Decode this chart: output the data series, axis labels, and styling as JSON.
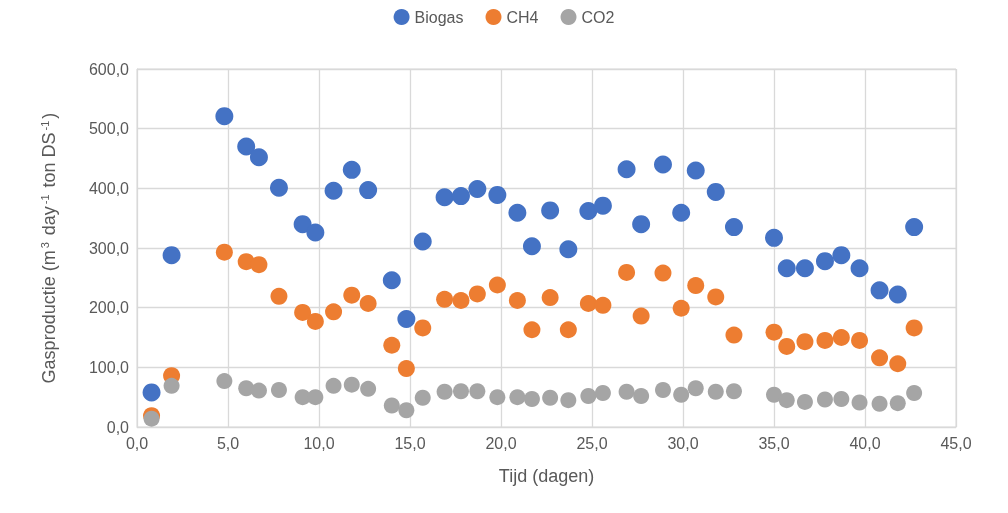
{
  "chart_data": {
    "type": "scatter",
    "xlabel": "Tijd (dagen)",
    "ylabel": "Gasproductie (m$^{3}$ day$^{-1}$ ton DS$^{-1}$)",
    "x": [
      0.8,
      1.9,
      4.8,
      6.0,
      6.7,
      7.8,
      9.1,
      9.8,
      10.8,
      11.8,
      12.7,
      14.0,
      14.8,
      15.7,
      16.9,
      17.8,
      18.7,
      19.8,
      20.9,
      21.7,
      22.7,
      23.7,
      24.8,
      25.6,
      26.9,
      27.7,
      28.9,
      29.9,
      30.7,
      31.8,
      32.8,
      35.0,
      35.7,
      36.7,
      37.8,
      38.7,
      39.7,
      40.8,
      41.8,
      42.7
    ],
    "series": [
      {
        "name": "Biogas",
        "color": "#4472c4",
        "values": [
          58,
          288,
          521,
          470,
          452,
          401,
          340,
          326,
          396,
          431,
          397,
          246,
          181,
          311,
          385,
          387,
          399,
          389,
          359,
          303,
          363,
          298,
          362,
          371,
          432,
          340,
          440,
          359,
          430,
          394,
          335,
          317,
          266,
          266,
          278,
          288,
          266,
          229,
          222,
          335
        ]
      },
      {
        "name": "CH4",
        "color": "#ed7d31",
        "values": [
          19,
          86,
          293,
          277,
          272,
          219,
          192,
          177,
          193,
          221,
          207,
          137,
          98,
          166,
          214,
          212,
          223,
          238,
          212,
          163,
          217,
          163,
          207,
          204,
          259,
          186,
          258,
          199,
          237,
          218,
          154,
          159,
          135,
          143,
          145,
          150,
          145,
          116,
          106,
          166
        ]
      },
      {
        "name": "CO2",
        "color": "#a5a5a5",
        "values": [
          14,
          69,
          77,
          65,
          61,
          62,
          50,
          50,
          69,
          71,
          64,
          36,
          28,
          49,
          59,
          60,
          60,
          50,
          50,
          47,
          49,
          45,
          52,
          57,
          59,
          52,
          62,
          54,
          65,
          59,
          60,
          54,
          45,
          42,
          46,
          47,
          41,
          39,
          40,
          57
        ]
      }
    ],
    "xlim": [
      0,
      45
    ],
    "xticks": [
      {
        "value": 0,
        "label": "0,0"
      },
      {
        "value": 5,
        "label": "5,0"
      },
      {
        "value": 10,
        "label": "10,0"
      },
      {
        "value": 15,
        "label": "15,0"
      },
      {
        "value": 20,
        "label": "20,0"
      },
      {
        "value": 25,
        "label": "25,0"
      },
      {
        "value": 30,
        "label": "30,0"
      },
      {
        "value": 35,
        "label": "35,0"
      },
      {
        "value": 40,
        "label": "40,0"
      },
      {
        "value": 45,
        "label": "45,0"
      }
    ],
    "ylim": [
      0,
      600
    ],
    "yticks": [
      {
        "value": 0,
        "label": "0,0"
      },
      {
        "value": 100,
        "label": "100,0"
      },
      {
        "value": 200,
        "label": "200,0"
      },
      {
        "value": 300,
        "label": "300,0"
      },
      {
        "value": 400,
        "label": "400,0"
      },
      {
        "value": 500,
        "label": "500,0"
      },
      {
        "value": 600,
        "label": "600,0"
      }
    ],
    "grid": true,
    "legend": "top",
    "marker": "circle"
  }
}
